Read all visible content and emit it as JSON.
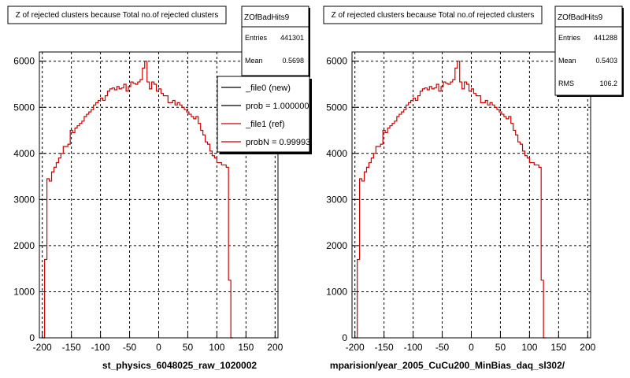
{
  "chart_data": [
    {
      "type": "line",
      "title": "Z of rejected clusters  because Total no.of rejected clusters",
      "xlabel": "st_physics_6048025_raw_1020002",
      "xlim": [
        -205,
        205
      ],
      "ylim": [
        0,
        6200
      ],
      "xticks": [
        -200,
        -150,
        -100,
        -50,
        0,
        50,
        100,
        150,
        200
      ],
      "yticks": [
        0,
        1000,
        2000,
        3000,
        4000,
        5000,
        6000
      ],
      "grid": true,
      "stats": {
        "name": "ZOfBadHits9",
        "entries_label": "Entries",
        "entries": "441301",
        "mean_label": "Mean",
        "mean": "0.5698"
      },
      "legend": {
        "placement": "top-right",
        "entries": [
          {
            "label": "_file0 (new)",
            "color": "#000000"
          },
          {
            "label": "prob = 1.000000",
            "color": "#000000"
          },
          {
            "label": "_file1 (ref)",
            "color": "#cc0000"
          },
          {
            "label": "probN = 0.99993",
            "color": "#cc0000"
          }
        ]
      },
      "series": [
        {
          "color": "#cc0000"
        }
      ]
    },
    {
      "type": "line",
      "title": "Z of rejected clusters  because Total no.of rejected clusters",
      "xlabel": "mparision/year_2005_CuCu200_MinBias_daq_sl302/",
      "xlim": [
        -205,
        205
      ],
      "ylim": [
        0,
        6200
      ],
      "xticks": [
        -200,
        -150,
        -100,
        -50,
        0,
        50,
        100,
        150,
        200
      ],
      "yticks": [
        0,
        1000,
        2000,
        3000,
        4000,
        5000,
        6000
      ],
      "grid": true,
      "stats": {
        "name": "ZOfBadHits9",
        "entries_label": "Entries",
        "entries": "441288",
        "mean_label": "Mean",
        "mean": "0.5403",
        "rms_label": "RMS",
        "rms": "106.2"
      },
      "series": [
        {
          "color": "#cc0000"
        }
      ]
    }
  ],
  "histogram": {
    "bin_width": 4,
    "x_start": -200,
    "bin_values": [
      0,
      1700,
      3450,
      3400,
      3600,
      3700,
      3800,
      3900,
      4000,
      4150,
      4150,
      4200,
      4500,
      4450,
      4550,
      4600,
      4650,
      4700,
      4800,
      4850,
      4900,
      4950,
      5050,
      5100,
      5150,
      5200,
      5150,
      5250,
      5350,
      5400,
      5420,
      5380,
      5450,
      5400,
      5420,
      5500,
      5350,
      5450,
      5550,
      5520,
      5500,
      5550,
      5600,
      5850,
      6000,
      5550,
      5400,
      5550,
      5500,
      5350,
      5400,
      5300,
      5250,
      5250,
      5100,
      5100,
      5150,
      5050,
      5100,
      5050,
      5000,
      4950,
      4900,
      4850,
      4800,
      4750,
      4800,
      4650,
      4500,
      4400,
      4250,
      4200,
      4050,
      3950,
      3900,
      3800,
      3800,
      3750,
      3750,
      3700,
      1250,
      0
    ]
  }
}
